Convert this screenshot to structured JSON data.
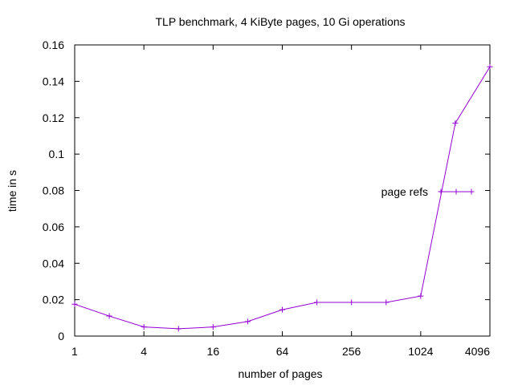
{
  "chart_data": {
    "type": "line",
    "title": "TLP benchmark, 4 KiByte pages, 10 Gi operations",
    "xlabel": "number of pages",
    "ylabel": "time in s",
    "xscale": "log2",
    "xlim": [
      1,
      4096
    ],
    "ylim": [
      0,
      0.16
    ],
    "x_ticks": [
      1,
      4,
      16,
      64,
      256,
      1024,
      4096
    ],
    "x_tick_labels": [
      "1",
      "4",
      "16",
      "64",
      "256",
      "1024",
      "4096"
    ],
    "y_ticks": [
      0,
      0.02,
      0.04,
      0.06,
      0.08,
      0.1,
      0.12,
      0.14,
      0.16
    ],
    "y_tick_labels": [
      "0",
      "0.02",
      "0.04",
      "0.06",
      "0.08",
      "0.1",
      "0.12",
      "0.14",
      "0.16"
    ],
    "grid": false,
    "legend_position": "right-middle",
    "series": [
      {
        "name": "page refs",
        "color": "#9400d3",
        "marker": "plus",
        "x": [
          1,
          2,
          4,
          8,
          16,
          32,
          64,
          128,
          256,
          512,
          1024,
          2048,
          4096
        ],
        "y": [
          0.0175,
          0.011,
          0.005,
          0.004,
          0.005,
          0.008,
          0.0145,
          0.0185,
          0.0185,
          0.0185,
          0.022,
          0.117,
          0.148
        ]
      }
    ]
  }
}
